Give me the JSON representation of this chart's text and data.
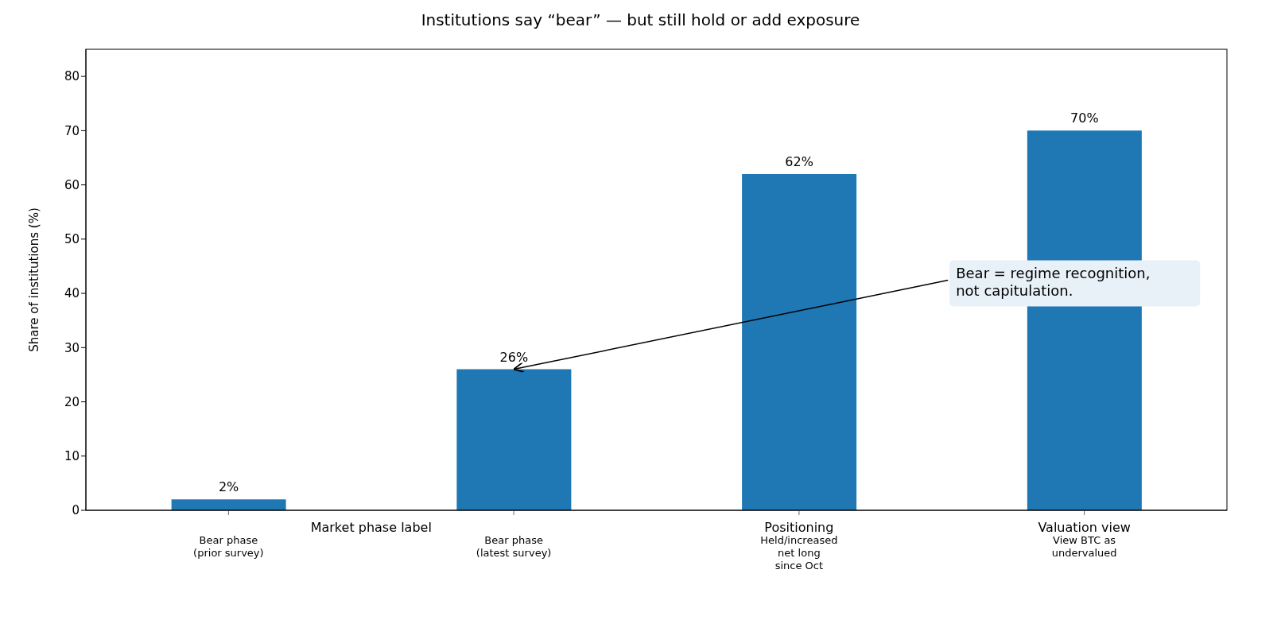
{
  "chart_data": {
    "type": "bar",
    "title": "Institutions say “bear” — but still hold or add exposure",
    "ylabel": "Share of institutions (%)",
    "categories": [
      "Bear phase\n(prior survey)",
      "Bear phase\n(latest survey)",
      "Held/increased\nnet long\nsince Oct",
      "View BTC as\nundervalued"
    ],
    "values": [
      2,
      26,
      62,
      70
    ],
    "color": "#1f77b4",
    "value_labels": [
      "2%",
      "26%",
      "62%",
      "70%"
    ],
    "ylim": [
      0,
      85
    ],
    "yticks": [
      0,
      10,
      20,
      30,
      40,
      50,
      60,
      70,
      80
    ],
    "grid": false,
    "legend": false,
    "annotations": [
      {
        "text": "Bear = regime recognition,\nnot capitulation.",
        "x": "Bear phase\n(latest survey)",
        "y": 26
      },
      "Market phase label",
      "Positioning",
      "Valuation view"
    ]
  }
}
